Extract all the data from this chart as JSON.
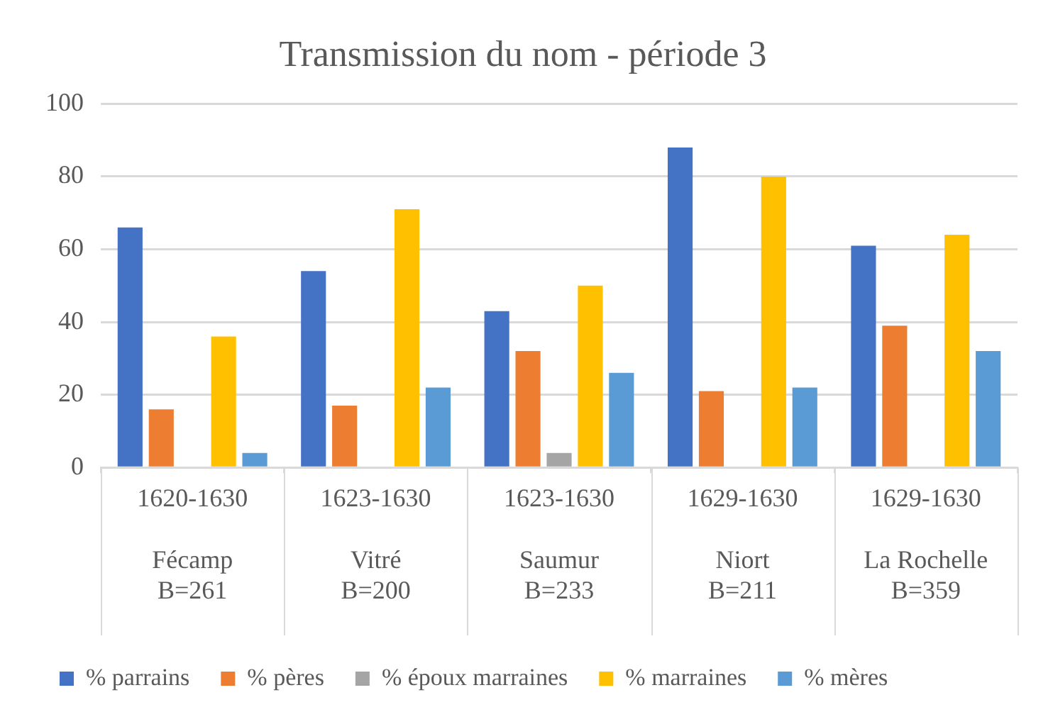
{
  "chart_data": {
    "type": "bar",
    "title": "Transmission du nom - période 3",
    "categories": [
      "1620-1630\n\nFécamp\nB=261",
      "1623-1630\n\nVitré\nB=200",
      "1623-1630\n\nSaumur\nB=233",
      "1629-1630\n\nNiort\nB=211",
      "1629-1630\n\nLa Rochelle\nB=359"
    ],
    "series": [
      {
        "name": "% parrains",
        "color": "#4472c4",
        "values": [
          66,
          54,
          43,
          88,
          61
        ]
      },
      {
        "name": "% pères",
        "color": "#ed7d31",
        "values": [
          16,
          17,
          32,
          21,
          39
        ]
      },
      {
        "name": "% époux marraines",
        "color": "#a5a5a5",
        "values": [
          0,
          0,
          4,
          0,
          0
        ]
      },
      {
        "name": "% marraines",
        "color": "#ffc000",
        "values": [
          36,
          71,
          50,
          80,
          64
        ]
      },
      {
        "name": "% mères",
        "color": "#5b9bd5",
        "values": [
          4,
          22,
          26,
          22,
          32
        ]
      }
    ],
    "ylim": [
      0,
      100
    ],
    "yticks": [
      0,
      20,
      40,
      60,
      80,
      100
    ],
    "grid": "y",
    "legend": "bottom"
  }
}
